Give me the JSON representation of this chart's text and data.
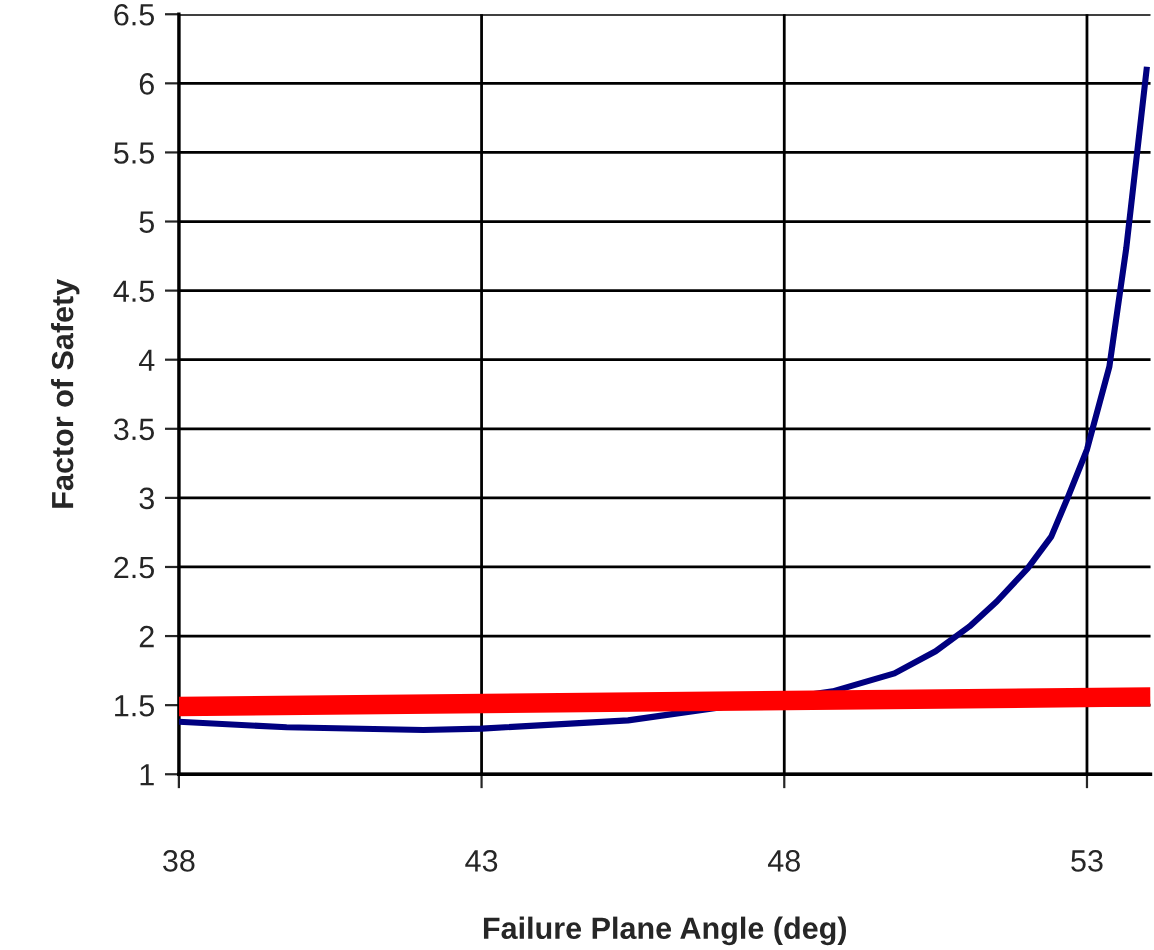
{
  "chart_data": {
    "type": "line",
    "xlabel": "Failure Plane Angle (deg)",
    "ylabel": "Factor of Safety",
    "xlim": [
      38,
      54.05
    ],
    "xticks": [
      38,
      43,
      48,
      53
    ],
    "ylim": [
      1,
      6.5
    ],
    "yticks": [
      1,
      1.5,
      2,
      2.5,
      3,
      3.5,
      4,
      4.5,
      5,
      5.5,
      6,
      6.5
    ],
    "grid": true,
    "marker": "none",
    "line_style": "solid",
    "series": [
      {
        "color": "#000080",
        "x": [
          38,
          39.78,
          42.04,
          43,
          45.42,
          48,
          48.8,
          49.82,
          50.5,
          51.06,
          51.51,
          52.02,
          52.41,
          52.69,
          53,
          53.37,
          53.65,
          53.99
        ],
        "values": [
          1.38,
          1.34,
          1.32,
          1.33,
          1.39,
          1.55,
          1.6,
          1.73,
          1.89,
          2.07,
          2.25,
          2.49,
          2.72,
          3.01,
          3.35,
          3.95,
          4.81,
          6.12
        ]
      },
      {
        "color": "#ff0000",
        "x": [
          38,
          54.05
        ],
        "values": [
          1.49,
          1.56
        ]
      }
    ]
  }
}
